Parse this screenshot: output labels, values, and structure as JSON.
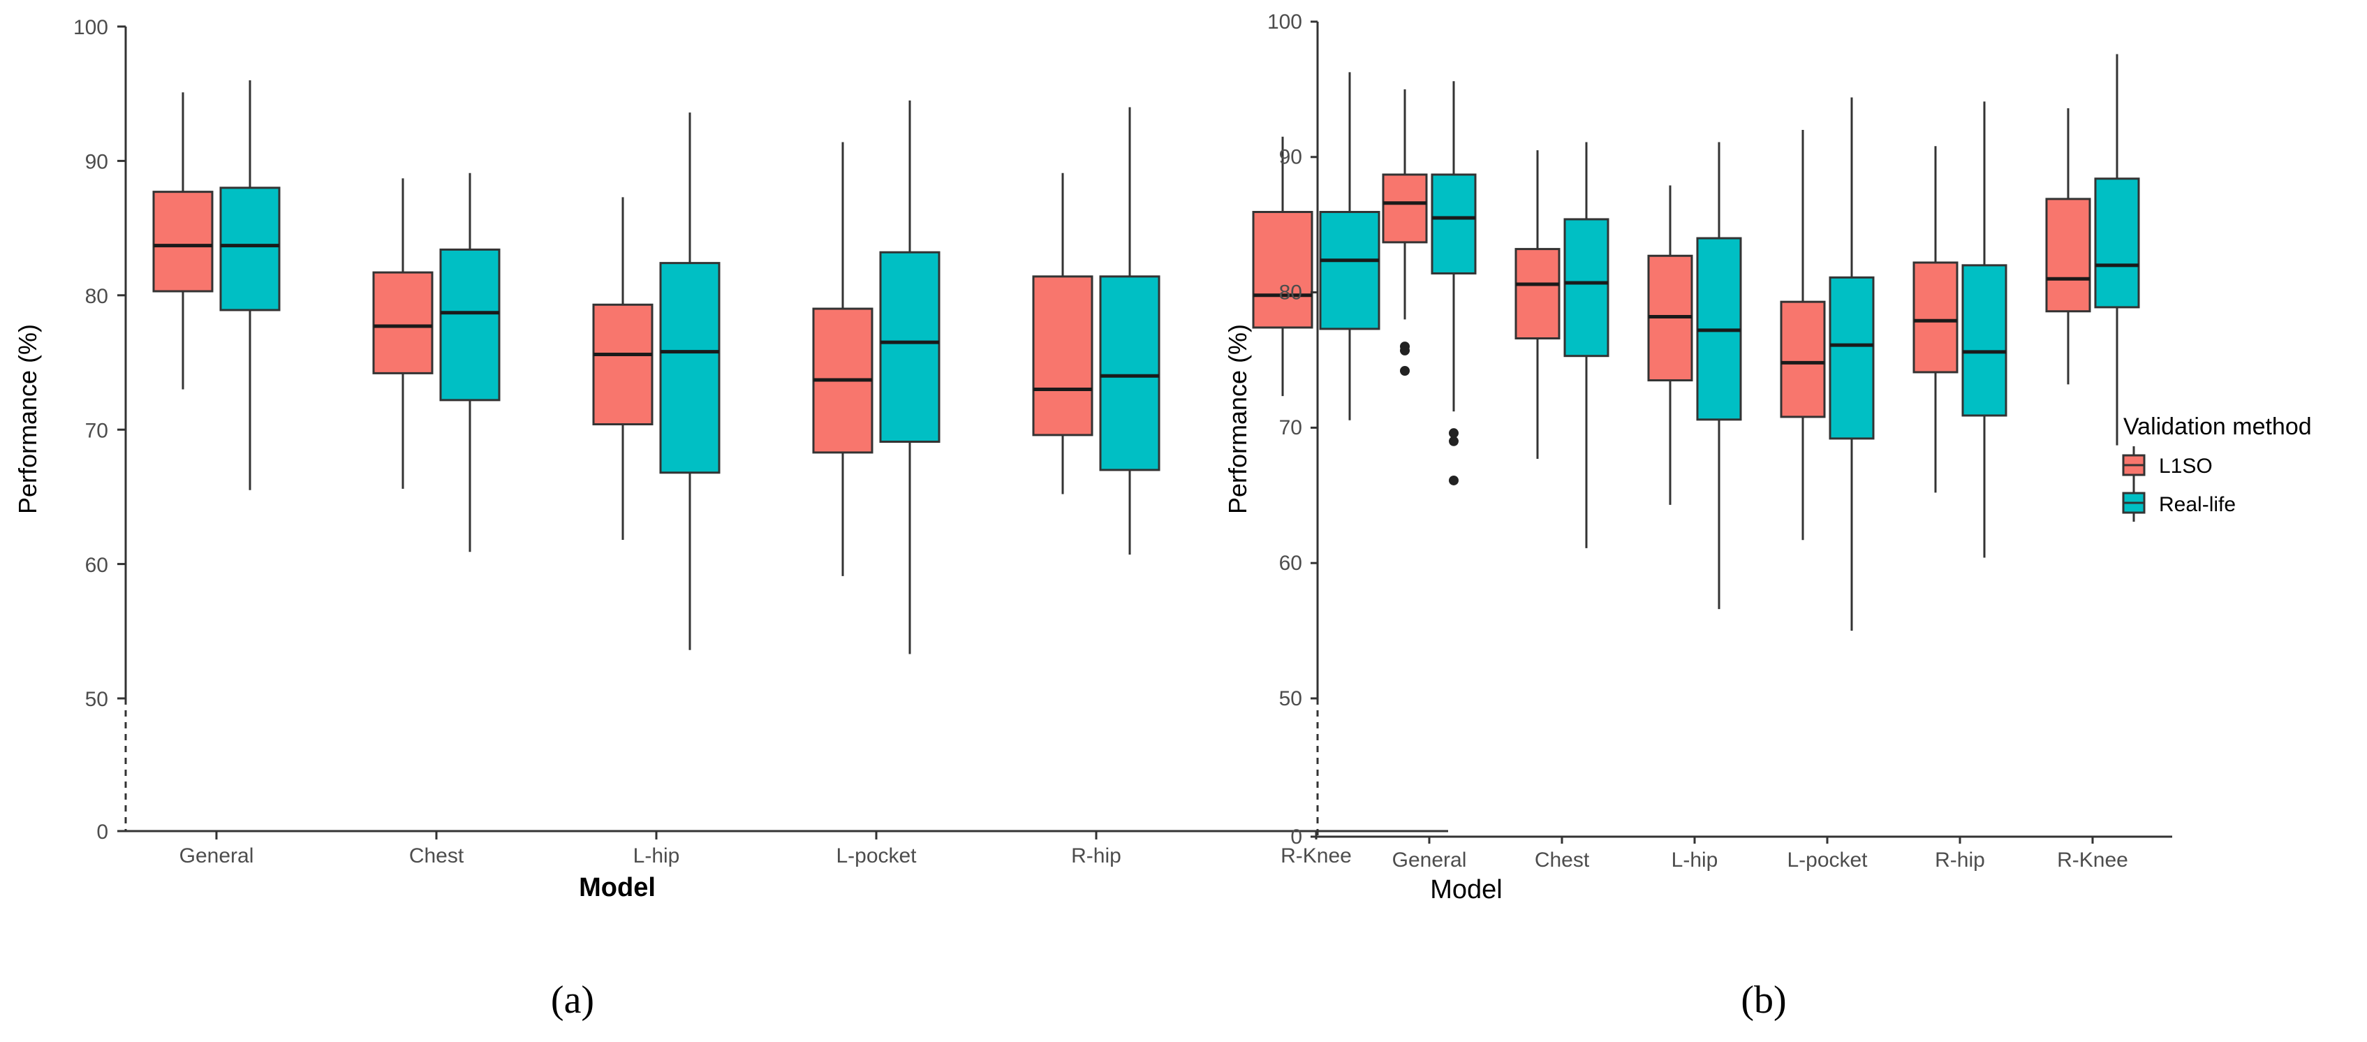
{
  "colors": {
    "l1so": "#F8766D",
    "real_life": "#00BFC4",
    "axis": "#333333",
    "whisker": "#333333"
  },
  "legend": {
    "title": "Validation method",
    "entries": [
      "L1SO",
      "Real-life"
    ]
  },
  "chart_data": [
    {
      "type": "boxplot",
      "caption": "(a)",
      "xlabel": "Model",
      "ylabel": "Performance (%)",
      "ylim": [
        0,
        100
      ],
      "y_break": [
        0,
        50
      ],
      "yticks": [
        "0",
        "50",
        "60",
        "70",
        "80",
        "90",
        "100"
      ],
      "categories": [
        "General",
        "Chest",
        "L-hip",
        "L-pocket",
        "R-hip",
        "R-Knee"
      ],
      "series": [
        {
          "name": "L1SO",
          "boxes": [
            {
              "min": 73.0,
              "q1": 80.3,
              "median": 83.7,
              "q3": 87.7,
              "max": 95.1,
              "outliers": []
            },
            {
              "min": 65.6,
              "q1": 74.2,
              "median": 77.7,
              "q3": 81.7,
              "max": 88.7,
              "outliers": []
            },
            {
              "min": 61.8,
              "q1": 70.4,
              "median": 75.6,
              "q3": 79.3,
              "max": 87.3,
              "outliers": []
            },
            {
              "min": 59.1,
              "q1": 68.3,
              "median": 73.7,
              "q3": 79.0,
              "max": 91.4,
              "outliers": []
            },
            {
              "min": 65.2,
              "q1": 69.6,
              "median": 73.0,
              "q3": 81.4,
              "max": 89.1,
              "outliers": []
            },
            {
              "min": 72.5,
              "q1": 77.6,
              "median": 80.0,
              "q3": 86.2,
              "max": 91.8,
              "outliers": []
            }
          ]
        },
        {
          "name": "Real-life",
          "boxes": [
            {
              "min": 65.5,
              "q1": 78.9,
              "median": 83.7,
              "q3": 88.0,
              "max": 96.0,
              "outliers": []
            },
            {
              "min": 60.9,
              "q1": 72.2,
              "median": 78.7,
              "q3": 83.4,
              "max": 89.1,
              "outliers": []
            },
            {
              "min": 53.6,
              "q1": 66.8,
              "median": 75.8,
              "q3": 82.4,
              "max": 93.6,
              "outliers": []
            },
            {
              "min": 53.3,
              "q1": 69.1,
              "median": 76.5,
              "q3": 83.2,
              "max": 94.5,
              "outliers": []
            },
            {
              "min": 60.7,
              "q1": 67.0,
              "median": 74.0,
              "q3": 81.4,
              "max": 94.0,
              "outliers": []
            },
            {
              "min": 70.7,
              "q1": 77.5,
              "median": 82.6,
              "q3": 86.2,
              "max": 96.6,
              "outliers": []
            }
          ]
        }
      ]
    },
    {
      "type": "boxplot",
      "caption": "(b)",
      "xlabel": "Model",
      "ylabel": "Performance (%)",
      "ylim": [
        0,
        100
      ],
      "y_break": [
        0,
        50
      ],
      "yticks": [
        "0",
        "50",
        "60",
        "70",
        "80",
        "90",
        "100"
      ],
      "categories": [
        "General",
        "Chest",
        "L-hip",
        "L-pocket",
        "R-hip",
        "R-Knee"
      ],
      "series": [
        {
          "name": "L1SO",
          "boxes": [
            {
              "min": 78.0,
              "q1": 83.7,
              "median": 86.6,
              "q3": 88.7,
              "max": 95.0,
              "outliers": [
                76.0,
                75.7,
                74.2
              ]
            },
            {
              "min": 67.7,
              "q1": 76.6,
              "median": 80.6,
              "q3": 83.2,
              "max": 90.5,
              "outliers": []
            },
            {
              "min": 64.3,
              "q1": 73.5,
              "median": 78.2,
              "q3": 82.7,
              "max": 87.9,
              "outliers": []
            },
            {
              "min": 61.7,
              "q1": 70.8,
              "median": 74.8,
              "q3": 79.3,
              "max": 92.0,
              "outliers": []
            },
            {
              "min": 65.2,
              "q1": 74.1,
              "median": 77.9,
              "q3": 82.2,
              "max": 90.8,
              "outliers": []
            },
            {
              "min": 73.2,
              "q1": 78.6,
              "median": 81.0,
              "q3": 86.9,
              "max": 93.6,
              "outliers": []
            }
          ]
        },
        {
          "name": "Real-life",
          "boxes": [
            {
              "min": 71.2,
              "q1": 81.4,
              "median": 85.5,
              "q3": 88.7,
              "max": 95.6,
              "outliers": [
                69.6,
                69.0,
                66.1
              ]
            },
            {
              "min": 61.1,
              "q1": 75.3,
              "median": 80.7,
              "q3": 85.4,
              "max": 91.1,
              "outliers": []
            },
            {
              "min": 56.6,
              "q1": 70.6,
              "median": 77.2,
              "q3": 84.0,
              "max": 91.1,
              "outliers": []
            },
            {
              "min": 55.0,
              "q1": 69.2,
              "median": 76.1,
              "q3": 81.1,
              "max": 94.4,
              "outliers": []
            },
            {
              "min": 60.4,
              "q1": 70.9,
              "median": 75.6,
              "q3": 82.0,
              "max": 94.1,
              "outliers": []
            },
            {
              "min": 68.7,
              "q1": 78.9,
              "median": 82.0,
              "q3": 88.4,
              "max": 97.6,
              "outliers": []
            }
          ]
        }
      ]
    }
  ]
}
